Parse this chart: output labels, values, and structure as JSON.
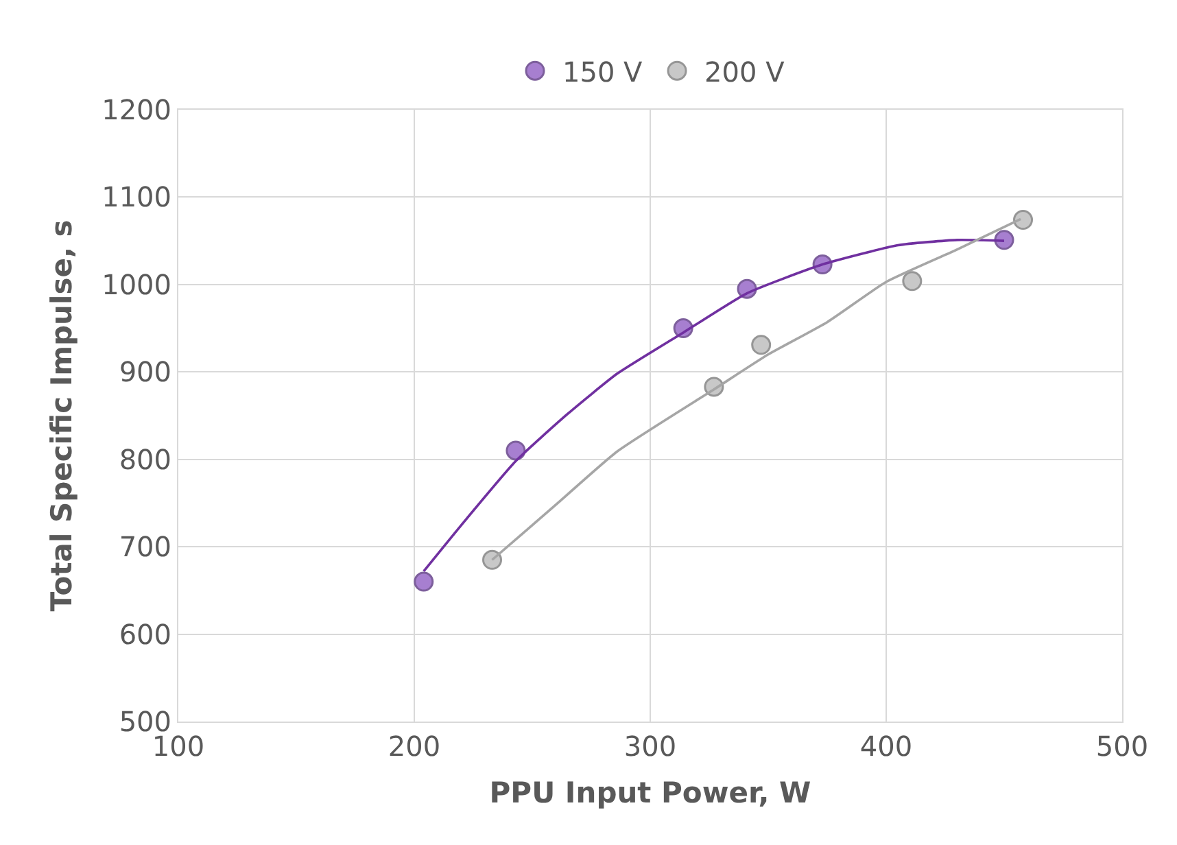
{
  "chart_data": {
    "type": "scatter",
    "xlabel": "PPU Input Power, W",
    "ylabel": "Total Specific Impulse, s",
    "xlim": [
      100,
      500
    ],
    "xticks": [
      100,
      200,
      300,
      400,
      500
    ],
    "ylim": [
      500,
      1200
    ],
    "yticks": [
      500,
      600,
      700,
      800,
      900,
      1000,
      1100,
      1200
    ],
    "grid": true,
    "legend": "top",
    "series": [
      {
        "name": "150 V",
        "marker": "circle",
        "color": "#a77fd0",
        "x": [
          204,
          243,
          314,
          341,
          373,
          450
        ],
        "values": [
          660,
          810,
          950,
          995,
          1023,
          1051
        ]
      },
      {
        "name": "200 V",
        "marker": "circle",
        "color": "#c8c8c8",
        "x": [
          233,
          327,
          347,
          411,
          458
        ],
        "values": [
          685,
          883,
          931,
          1004,
          1074
        ]
      },
      {
        "type": "line",
        "marker": "none",
        "color": "#7030a0",
        "x": [
          204,
          220,
          243,
          265,
          286,
          314,
          341,
          373,
          405,
          430,
          450
        ],
        "values": [
          672,
          725,
          798,
          852,
          898,
          945,
          990,
          1023,
          1045,
          1051,
          1050
        ]
      },
      {
        "type": "line",
        "marker": "none",
        "color": "#a6a6a6",
        "x": [
          233,
          260,
          286,
          327,
          350,
          375,
          400,
          430,
          457
        ],
        "values": [
          685,
          748,
          809,
          880,
          920,
          957,
          1003,
          1040,
          1075
        ]
      }
    ]
  }
}
